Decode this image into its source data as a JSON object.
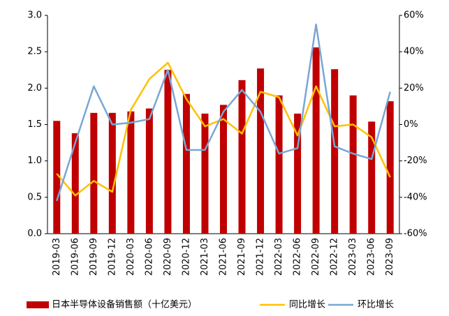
{
  "chart_data": {
    "type": "bar-line",
    "categories": [
      "2019-03",
      "2019-06",
      "2019-09",
      "2019-12",
      "2020-03",
      "2020-06",
      "2020-09",
      "2020-12",
      "2021-03",
      "2021-06",
      "2021-09",
      "2021-12",
      "2022-03",
      "2022-06",
      "2022-09",
      "2022-12",
      "2023-03",
      "2023-06",
      "2023-09"
    ],
    "series": [
      {
        "name": "日本半导体设备销售额（十亿美元）",
        "type": "bar",
        "color": "#c00000",
        "values": [
          1.55,
          1.38,
          1.66,
          1.66,
          1.68,
          1.72,
          2.25,
          1.92,
          1.65,
          1.77,
          2.11,
          2.27,
          1.9,
          1.65,
          2.56,
          2.26,
          1.9,
          1.54,
          1.82
        ]
      },
      {
        "name": "同比增长",
        "type": "line",
        "axis": "y2",
        "color": "#ffc000",
        "values": [
          -27,
          -39,
          -31,
          -37,
          8,
          25,
          34,
          14,
          -1,
          3,
          -5,
          18,
          15,
          -6,
          21,
          -1,
          0,
          -7,
          -29
        ]
      },
      {
        "name": "环比增长",
        "type": "line",
        "axis": "y2",
        "color": "#7aa6d4",
        "values": [
          -42,
          -10,
          21,
          0,
          1,
          3,
          30,
          -14,
          -14,
          7,
          19,
          7,
          -16,
          -13,
          55,
          -12,
          -16,
          -19,
          18
        ]
      }
    ],
    "ylim": [
      0,
      3
    ],
    "yticks": [
      {
        "value": 0,
        "label": "0.0"
      },
      0.5,
      {
        "value": 1,
        "label": "1.0"
      },
      1.5,
      {
        "value": 2,
        "label": "2.0"
      },
      2.5,
      {
        "value": 3,
        "label": "3.0"
      }
    ],
    "y2lim": [
      -60,
      60
    ],
    "y2ticks": [
      {
        "value": -60,
        "label": "-60%"
      },
      {
        "value": -40,
        "label": "-40%"
      },
      {
        "value": -20,
        "label": "-20%"
      },
      {
        "value": 0,
        "label": "0%"
      },
      {
        "value": 20,
        "label": "20%"
      },
      {
        "value": 40,
        "label": "40%"
      },
      {
        "value": 60,
        "label": "60%"
      }
    ],
    "grid": false
  }
}
